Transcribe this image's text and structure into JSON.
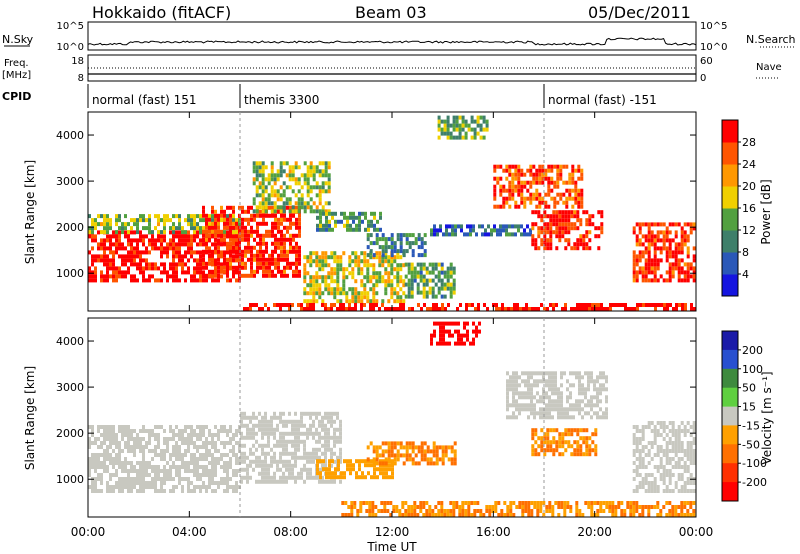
{
  "header": {
    "station": "Hokkaido (fitACF)",
    "beam": "Beam 03",
    "date": "05/Dec/2011"
  },
  "noise_panel": {
    "left_label": "N.Sky",
    "right_label": "N.Search",
    "left_ticks": [
      "10^5",
      "10^0"
    ],
    "right_ticks": [
      "10^5",
      "10^0"
    ]
  },
  "freq_panel": {
    "left_label_1": "Freq.",
    "left_label_2": "[MHz]",
    "left_ticks": [
      "18",
      "8"
    ],
    "right_label": "Nave",
    "right_ticks": [
      "60",
      "0"
    ]
  },
  "cpid": {
    "label": "CPID",
    "segments": [
      {
        "label": "normal (fast) 151",
        "start_hour": 0,
        "end_hour": 6
      },
      {
        "label": "themis 3300",
        "start_hour": 6,
        "end_hour": 18
      },
      {
        "label": "normal (fast) -151",
        "start_hour": 18,
        "end_hour": 24
      }
    ]
  },
  "x_axis": {
    "label": "Time UT",
    "ticks": [
      "00:00",
      "04:00",
      "08:00",
      "12:00",
      "16:00",
      "20:00",
      "00:00"
    ],
    "range_hours": [
      0,
      24
    ]
  },
  "power_panel": {
    "ylabel": "Slant Range [km]",
    "yticks": [
      "1000",
      "2000",
      "3000",
      "4000"
    ],
    "colorbar_label": "Power [dB]",
    "colorbar_ticks": [
      "4",
      "8",
      "12",
      "16",
      "20",
      "24",
      "28"
    ]
  },
  "velocity_panel": {
    "ylabel": "Slant Range [km]",
    "yticks": [
      "1000",
      "2000",
      "3000",
      "4000"
    ],
    "colorbar_label": "Velocity [m s⁻¹]",
    "colorbar_ticks": [
      "200",
      "100",
      "50",
      "15",
      "-15",
      "-50",
      "-100",
      "-200"
    ]
  },
  "colors": {
    "power_scale": [
      "#1515e0",
      "#2a58b8",
      "#3e7f6a",
      "#52a040",
      "#f0d000",
      "#ff9800",
      "#ff5500",
      "#ff0000"
    ],
    "velocity_scale": [
      "#1a1aa8",
      "#2850d0",
      "#3e8a3e",
      "#5fd040",
      "#c8c8c0",
      "#ffa000",
      "#ff7000",
      "#ff3000",
      "#ff0000"
    ],
    "ground_scatter": "#c8c8c0"
  },
  "chart_data": {
    "type": "heatmap",
    "x_range_hours": [
      0,
      24
    ],
    "y_range_km": [
      180,
      4500
    ],
    "power_db_range": [
      0,
      30
    ],
    "velocity_range": [
      -250,
      250
    ],
    "power_regions": [
      {
        "t0": 0.0,
        "t1": 6.0,
        "r0": 800,
        "r1": 1850,
        "level": 29
      },
      {
        "t0": 0.0,
        "t1": 6.0,
        "r0": 1850,
        "r1": 2250,
        "level": 14
      },
      {
        "t0": 4.5,
        "t1": 8.3,
        "r0": 900,
        "r1": 2400,
        "level": 27
      },
      {
        "t0": 6.5,
        "t1": 9.5,
        "r0": 2300,
        "r1": 3400,
        "level": 15
      },
      {
        "t0": 9.0,
        "t1": 11.5,
        "r0": 1900,
        "r1": 2300,
        "level": 11
      },
      {
        "t0": 8.5,
        "t1": 12.5,
        "r0": 350,
        "r1": 1400,
        "level": 17
      },
      {
        "t0": 11.0,
        "t1": 13.3,
        "r0": 1350,
        "r1": 1800,
        "level": 9
      },
      {
        "t0": 12.5,
        "t1": 14.5,
        "r0": 450,
        "r1": 1200,
        "level": 12
      },
      {
        "t0": 13.5,
        "t1": 17.5,
        "r0": 1800,
        "r1": 2050,
        "level": 7
      },
      {
        "t0": 13.8,
        "t1": 15.8,
        "r0": 3900,
        "r1": 4450,
        "level": 13
      },
      {
        "t0": 16.0,
        "t1": 19.5,
        "r0": 2400,
        "r1": 3300,
        "level": 25
      },
      {
        "t0": 17.5,
        "t1": 20.3,
        "r0": 1500,
        "r1": 2300,
        "level": 27
      },
      {
        "t0": 21.5,
        "t1": 24.0,
        "r0": 800,
        "r1": 2100,
        "level": 27
      },
      {
        "t0": 6.0,
        "t1": 24.0,
        "r0": 180,
        "r1": 300,
        "level": 29
      }
    ],
    "velocity_regions": [
      {
        "t0": 0.0,
        "t1": 6.0,
        "r0": 700,
        "r1": 2100,
        "value": 0
      },
      {
        "t0": 6.0,
        "t1": 10.0,
        "r0": 900,
        "r1": 2400,
        "value": 0
      },
      {
        "t0": 9.0,
        "t1": 12.0,
        "r0": 1000,
        "r1": 1400,
        "value": -40
      },
      {
        "t0": 11.0,
        "t1": 14.5,
        "r0": 1300,
        "r1": 1800,
        "value": -50
      },
      {
        "t0": 13.5,
        "t1": 15.5,
        "r0": 3900,
        "r1": 4450,
        "value": -220
      },
      {
        "t0": 16.5,
        "t1": 20.5,
        "r0": 2300,
        "r1": 3300,
        "value": 0
      },
      {
        "t0": 17.5,
        "t1": 20.0,
        "r0": 1500,
        "r1": 2100,
        "value": -50
      },
      {
        "t0": 21.5,
        "t1": 24.0,
        "r0": 700,
        "r1": 2200,
        "value": 0
      },
      {
        "t0": 10.0,
        "t1": 24.0,
        "r0": 180,
        "r1": 500,
        "value": -50
      }
    ]
  }
}
